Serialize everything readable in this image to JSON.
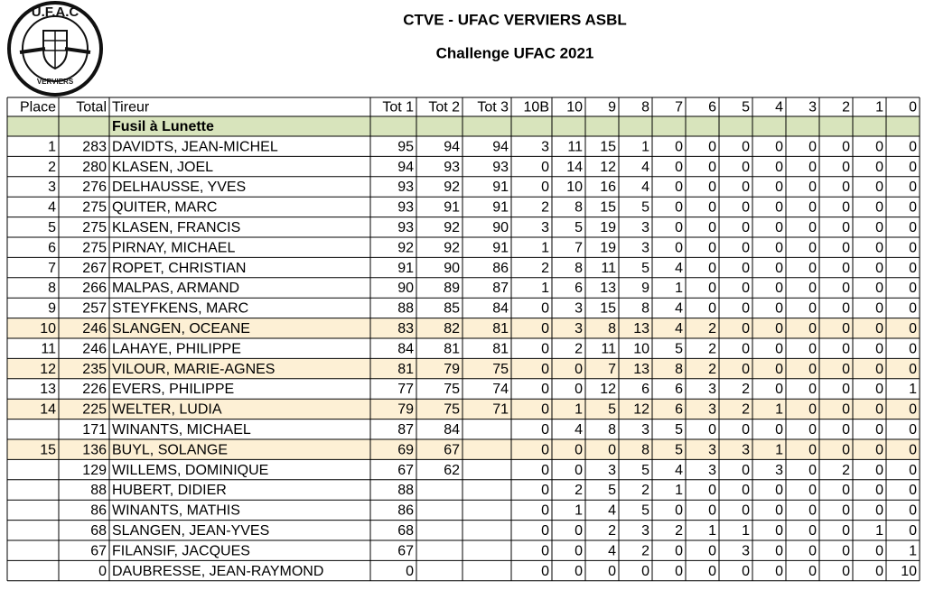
{
  "header": {
    "title": "CTVE - UFAC VERVIERS ASBL",
    "subtitle": "Challenge UFAC 2021"
  },
  "logo": {
    "top": "U.F.A.C",
    "bottom": "VERVIERS"
  },
  "table": {
    "columns": [
      "Place",
      "Total",
      "Tireur",
      "Tot 1",
      "Tot 2",
      "Tot 3",
      "10B",
      "10",
      "9",
      "8",
      "7",
      "6",
      "5",
      "4",
      "3",
      "2",
      "1",
      "0"
    ],
    "section": "Fusil à Lunette",
    "section_fill": "#d8e4bc",
    "rows": [
      {
        "cells": [
          1,
          283,
          "DAVIDTS, JEAN-MICHEL",
          95,
          94,
          94,
          3,
          11,
          15,
          1,
          0,
          0,
          0,
          0,
          0,
          0,
          0,
          0
        ]
      },
      {
        "cells": [
          2,
          280,
          "KLASEN, JOEL",
          94,
          93,
          93,
          0,
          14,
          12,
          4,
          0,
          0,
          0,
          0,
          0,
          0,
          0,
          0
        ]
      },
      {
        "cells": [
          3,
          276,
          "DELHAUSSE, YVES",
          93,
          92,
          91,
          0,
          10,
          16,
          4,
          0,
          0,
          0,
          0,
          0,
          0,
          0,
          0
        ]
      },
      {
        "cells": [
          4,
          275,
          "QUITER, MARC",
          93,
          91,
          91,
          2,
          8,
          15,
          5,
          0,
          0,
          0,
          0,
          0,
          0,
          0,
          0
        ]
      },
      {
        "cells": [
          5,
          275,
          "KLASEN, FRANCIS",
          93,
          92,
          90,
          3,
          5,
          19,
          3,
          0,
          0,
          0,
          0,
          0,
          0,
          0,
          0
        ]
      },
      {
        "cells": [
          6,
          275,
          "PIRNAY, MICHAEL",
          92,
          92,
          91,
          1,
          7,
          19,
          3,
          0,
          0,
          0,
          0,
          0,
          0,
          0,
          0
        ]
      },
      {
        "cells": [
          7,
          267,
          "ROPET, CHRISTIAN",
          91,
          90,
          86,
          2,
          8,
          11,
          5,
          4,
          0,
          0,
          0,
          0,
          0,
          0,
          0
        ]
      },
      {
        "cells": [
          8,
          266,
          "MALPAS, ARMAND",
          90,
          89,
          87,
          1,
          6,
          13,
          9,
          1,
          0,
          0,
          0,
          0,
          0,
          0,
          0
        ]
      },
      {
        "cells": [
          9,
          257,
          "STEYFKENS, MARC",
          88,
          85,
          84,
          0,
          3,
          15,
          8,
          4,
          0,
          0,
          0,
          0,
          0,
          0,
          0
        ]
      },
      {
        "cells": [
          10,
          246,
          "SLANGEN, OCEANE",
          83,
          82,
          81,
          0,
          3,
          8,
          13,
          4,
          2,
          0,
          0,
          0,
          0,
          0,
          0
        ],
        "fill": "#fdf0d5"
      },
      {
        "cells": [
          11,
          246,
          "LAHAYE, PHILIPPE",
          84,
          81,
          81,
          0,
          2,
          11,
          10,
          5,
          2,
          0,
          0,
          0,
          0,
          0,
          0
        ]
      },
      {
        "cells": [
          12,
          235,
          "VILOUR, MARIE-AGNES",
          81,
          79,
          75,
          0,
          0,
          7,
          13,
          8,
          2,
          0,
          0,
          0,
          0,
          0,
          0
        ],
        "fill": "#fdf0d5"
      },
      {
        "cells": [
          13,
          226,
          "EVERS, PHILIPPE",
          77,
          75,
          74,
          0,
          0,
          12,
          6,
          6,
          3,
          2,
          0,
          0,
          0,
          0,
          1
        ]
      },
      {
        "cells": [
          14,
          225,
          "WELTER, LUDIA",
          79,
          75,
          71,
          0,
          1,
          5,
          12,
          6,
          3,
          2,
          1,
          0,
          0,
          0,
          0
        ],
        "fill": "#fdf0d5"
      },
      {
        "cells": [
          null,
          171,
          "WINANTS, MICHAEL",
          87,
          84,
          null,
          0,
          4,
          8,
          3,
          5,
          0,
          0,
          0,
          0,
          0,
          0,
          0
        ]
      },
      {
        "cells": [
          15,
          136,
          "BUYL, SOLANGE",
          69,
          67,
          null,
          0,
          0,
          0,
          8,
          5,
          3,
          3,
          1,
          0,
          0,
          0,
          0
        ],
        "fill": "#fdf0d5",
        "place_color": "#ffffff"
      },
      {
        "cells": [
          null,
          129,
          "WILLEMS, DOMINIQUE",
          67,
          62,
          null,
          0,
          0,
          3,
          5,
          4,
          3,
          0,
          3,
          0,
          2,
          0,
          0
        ]
      },
      {
        "cells": [
          null,
          88,
          "HUBERT, DIDIER",
          88,
          null,
          null,
          0,
          2,
          5,
          2,
          1,
          0,
          0,
          0,
          0,
          0,
          0,
          0
        ]
      },
      {
        "cells": [
          null,
          86,
          "WINANTS, MATHIS",
          86,
          null,
          null,
          0,
          1,
          4,
          5,
          0,
          0,
          0,
          0,
          0,
          0,
          0,
          0
        ]
      },
      {
        "cells": [
          null,
          68,
          "SLANGEN, JEAN-YVES",
          68,
          null,
          null,
          0,
          0,
          2,
          3,
          2,
          1,
          1,
          0,
          0,
          0,
          1,
          0
        ]
      },
      {
        "cells": [
          null,
          67,
          "FILANSIF, JACQUES",
          67,
          null,
          null,
          0,
          0,
          4,
          2,
          0,
          0,
          3,
          0,
          0,
          0,
          0,
          1
        ]
      },
      {
        "cells": [
          null,
          0,
          "DAUBRESSE, JEAN-RAYMOND",
          0,
          null,
          null,
          0,
          0,
          0,
          0,
          0,
          0,
          0,
          0,
          0,
          0,
          0,
          10
        ]
      }
    ]
  }
}
